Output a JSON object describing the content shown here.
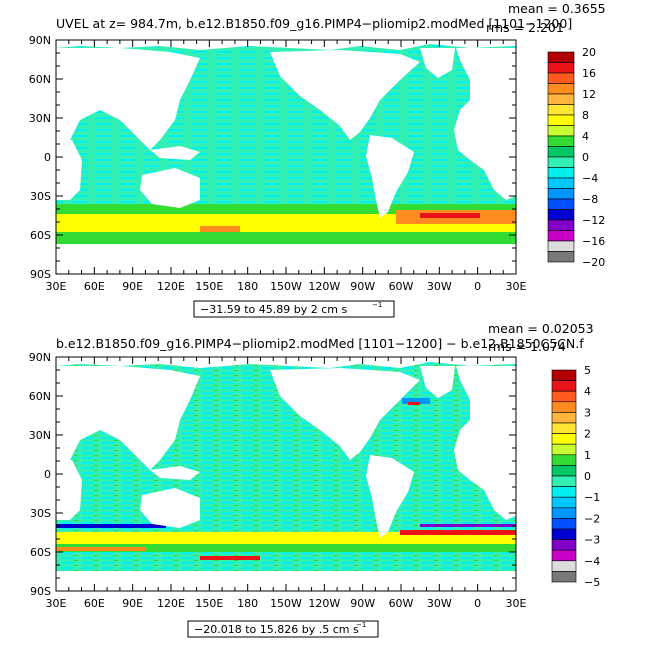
{
  "panels": [
    {
      "title": "UVEL at z= 984.7m, b.e12.B1850.f09_g16.PIMP4−pliomip2.modMed [1101−1200]",
      "mean_label": "mean = 0.3655",
      "rms_label": "rms = 2.201",
      "range_label": "−31.59 to 45.89 by 2 cm s",
      "range_exp": "−1",
      "lat_labels": [
        "90N",
        "60N",
        "30N",
        "0",
        "30S",
        "60S",
        "90S"
      ],
      "lon_labels": [
        "30E",
        "60E",
        "90E",
        "120E",
        "150E",
        "180",
        "150W",
        "120W",
        "90W",
        "60W",
        "30W",
        "0",
        "30E"
      ],
      "colorbar_labels": [
        "20",
        "16",
        "12",
        "8",
        "4",
        "0",
        "−4",
        "−8",
        "−12",
        "−16",
        "−20"
      ],
      "colorbar_colors": [
        "#b30000",
        "#e8141a",
        "#ff5a1e",
        "#ff8c1e",
        "#ffb43c",
        "#ffe632",
        "#ffff00",
        "#c8ff32",
        "#32dc32",
        "#00c864",
        "#32f0b4",
        "#00f0f0",
        "#00c8ff",
        "#0096ff",
        "#0050ff",
        "#0000d2",
        "#8200c8",
        "#c800c8",
        "#dcdcdc",
        "#787878"
      ]
    },
    {
      "title": "b.e12.B1850.f09_g16.PIMP4−pliomip2.modMed [1101−1200] − b.e12.B1850C5CN.f",
      "mean_label": "mean = 0.02053",
      "rms_label": "rms = 1.074",
      "range_label": "−20.018 to 15.826 by .5 cm s",
      "range_exp": "−1",
      "lat_labels": [
        "90N",
        "60N",
        "30N",
        "0",
        "30S",
        "60S",
        "90S"
      ],
      "lon_labels": [
        "30E",
        "60E",
        "90E",
        "120E",
        "150E",
        "180",
        "150W",
        "120W",
        "90W",
        "60W",
        "30W",
        "0",
        "30E"
      ],
      "colorbar_labels": [
        "5",
        "4",
        "3",
        "2",
        "1",
        "0",
        "−1",
        "−2",
        "−3",
        "−4",
        "−5"
      ],
      "colorbar_colors": [
        "#b30000",
        "#e8141a",
        "#ff5a1e",
        "#ff8c1e",
        "#ffb43c",
        "#ffe632",
        "#ffff00",
        "#c8ff32",
        "#32dc32",
        "#00c864",
        "#32f0b4",
        "#00f0f0",
        "#00c8ff",
        "#0096ff",
        "#0050ff",
        "#0000d2",
        "#8200c8",
        "#c800c8",
        "#dcdcdc",
        "#787878"
      ]
    }
  ],
  "colors": {
    "ocean_base": "#32f0b4",
    "ocean_alt": "#00f0f0",
    "green_band": "#32dc32",
    "yellow_band": "#ffff00",
    "orange_band": "#ff8c1e",
    "red_band": "#e8141a",
    "land": "#ffffff",
    "frame": "#000000"
  }
}
